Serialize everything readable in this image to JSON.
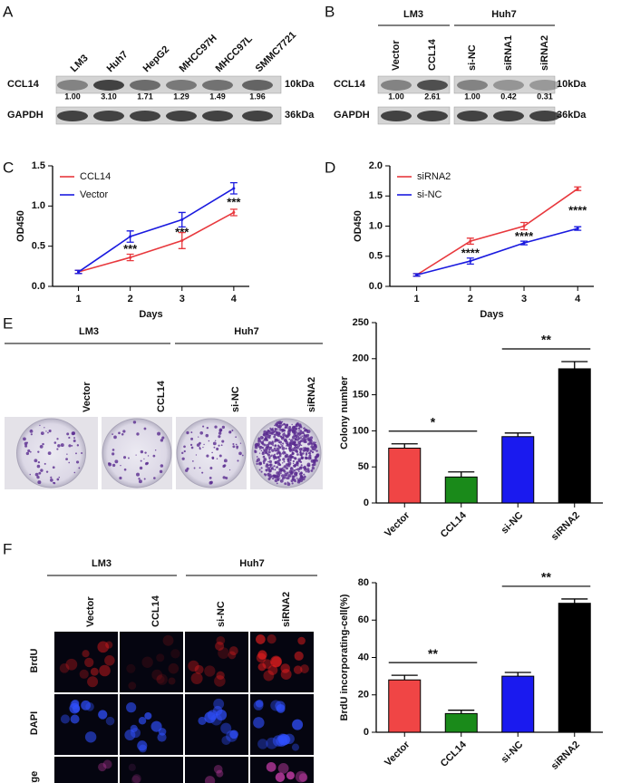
{
  "panel_labels": [
    "A",
    "B",
    "C",
    "D",
    "E",
    "F"
  ],
  "blot_a": {
    "lanes": [
      "LM3",
      "Huh7",
      "HepG2",
      "MHCC97H",
      "MHCC97L",
      "SMMC7721"
    ],
    "rows": [
      "CCL14",
      "GAPDH"
    ],
    "sizes": [
      "10kDa",
      "36kDa"
    ],
    "ratios": [
      "1.00",
      "3.10",
      "1.71",
      "1.29",
      "1.49",
      "1.96"
    ]
  },
  "blot_b": {
    "groups": [
      "LM3",
      "Huh7"
    ],
    "lanes": [
      "Vector",
      "CCL14",
      "si-NC",
      "siRNA1",
      "siRNA2"
    ],
    "rows": [
      "CCL14",
      "GAPDH"
    ],
    "sizes": [
      "10kDa",
      "36kDa"
    ],
    "ratios": [
      "1.00",
      "2.61",
      "1.00",
      "0.42",
      "0.31"
    ]
  },
  "panel_e": {
    "groups": [
      "LM3",
      "Huh7"
    ],
    "lanes": [
      "Vector",
      "CCL14",
      "si-NC",
      "siRNA2"
    ]
  },
  "panel_f": {
    "groups": [
      "LM3",
      "Huh7"
    ],
    "lanes": [
      "Vector",
      "CCL14",
      "si-NC",
      "siRNA2"
    ],
    "rows": [
      "BrdU",
      "DAPI",
      "Merge"
    ]
  },
  "chart_data": [
    {
      "type": "line",
      "xlabel": "Days",
      "ylabel": "OD450",
      "x": [
        1,
        2,
        3,
        4
      ],
      "xlim": [
        0.5,
        4.3
      ],
      "xticks": [
        1,
        2,
        3,
        4
      ],
      "ylim": [
        0,
        1.5
      ],
      "yticks": [
        {
          "value": 0,
          "label": "0.0"
        },
        0.5,
        {
          "value": 1,
          "label": "1.0"
        },
        1.5
      ],
      "series": [
        {
          "name": "CCL14",
          "color": "#e8383d",
          "values": [
            0.18,
            0.36,
            0.57,
            0.92
          ],
          "errors": [
            0.02,
            0.04,
            0.1,
            0.04
          ]
        },
        {
          "name": "Vector",
          "color": "#1a1adf",
          "values": [
            0.18,
            0.62,
            0.83,
            1.22
          ],
          "errors": [
            0.02,
            0.07,
            0.09,
            0.07
          ]
        }
      ],
      "annotations": [
        "***",
        "***",
        "***"
      ]
    },
    {
      "type": "line",
      "xlabel": "Days",
      "ylabel": "OD450",
      "x": [
        1,
        2,
        3,
        4
      ],
      "xlim": [
        0.5,
        4.3
      ],
      "xticks": [
        1,
        2,
        3,
        4
      ],
      "ylim": [
        0,
        2
      ],
      "yticks": [
        {
          "value": 0,
          "label": "0.0"
        },
        0.5,
        {
          "value": 1,
          "label": "1.0"
        },
        1.5,
        {
          "value": 2,
          "label": "2.0"
        }
      ],
      "series": [
        {
          "name": "siRNA2",
          "color": "#e8383d",
          "values": [
            0.19,
            0.75,
            1.0,
            1.62
          ],
          "errors": [
            0.02,
            0.05,
            0.06,
            0.03
          ]
        },
        {
          "name": "si-NC",
          "color": "#1a1adf",
          "values": [
            0.19,
            0.42,
            0.72,
            0.96
          ],
          "errors": [
            0.02,
            0.05,
            0.03,
            0.03
          ]
        }
      ],
      "annotations": [
        "****",
        "****",
        "****"
      ]
    },
    {
      "type": "bar",
      "ylabel": "Colony number",
      "categories": [
        "Vector",
        "CCL14",
        "si-NC",
        "siRNA2"
      ],
      "values": [
        76,
        36,
        92,
        186
      ],
      "errors": [
        6,
        7,
        5,
        10
      ],
      "colors": [
        "#f04545",
        "#1a8a1a",
        "#1a1aef",
        "#000000"
      ],
      "ylim": [
        0,
        250
      ],
      "yticks": [
        0,
        50,
        100,
        150,
        200,
        250
      ],
      "annotations": [
        "*",
        "**"
      ]
    },
    {
      "type": "bar",
      "ylabel": "BrdU incorporating-cell(%)",
      "categories": [
        "Vector",
        "CCL14",
        "si-NC",
        "siRNA2"
      ],
      "values": [
        28,
        10,
        30,
        69
      ],
      "errors": [
        2.5,
        1.8,
        2,
        2.3
      ],
      "colors": [
        "#f04545",
        "#1a8a1a",
        "#1a1aef",
        "#000000"
      ],
      "ylim": [
        0,
        80
      ],
      "yticks": [
        0,
        20,
        40,
        60,
        80
      ],
      "annotations": [
        "**",
        "**"
      ]
    }
  ]
}
